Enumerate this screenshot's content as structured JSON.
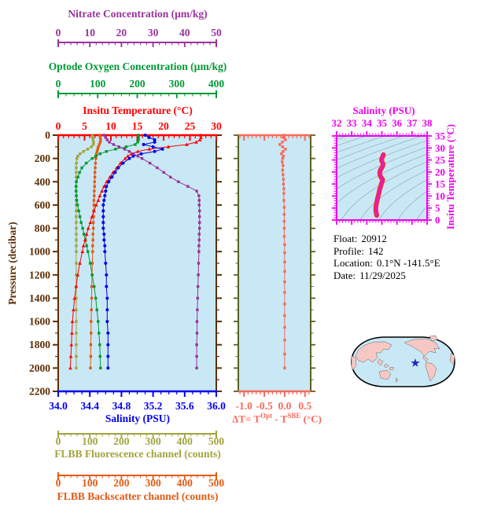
{
  "colors": {
    "nitrate": "#993399",
    "oxygen": "#009933",
    "temperature": "#FF0000",
    "salinity": "#0000EE",
    "pressure": "#5C2E04",
    "delta": "#F96A5A",
    "delta_frame": "#5A6022",
    "fluorescence": "#A3A33C",
    "backscatter": "#E35A12",
    "ts": "#EE00EE",
    "ts_curve": "#EE18B0",
    "ts_curve_edge": "#E8302A",
    "plot_bg": "#C9E8F5",
    "contour": "#9AA8B2",
    "land": "#F6C8C4",
    "map_outline": "#000000",
    "star": "#2222CC",
    "info_text": "#000000"
  },
  "labels": {
    "pressure_axis": "Pressure (decibar)",
    "salinity_axis": "Salinity (PSU)",
    "delta_prefix": "ΔT= T",
    "delta_sup1": "Opt",
    "delta_mid": " - T",
    "delta_sup2": "SBE",
    "delta_suffix": " (°C)",
    "ts_title": "Salinity (PSU)",
    "ts_right_axis": "Insitu Temperature (°C)"
  },
  "float_info": {
    "lines": [
      {
        "label": "Float:",
        "value": "20912"
      },
      {
        "label": "Profile:",
        "value": "142"
      },
      {
        "label": "Location:",
        "value": "0.1°N  -141.5°E"
      },
      {
        "label": "Date:",
        "value": "11/29/2025"
      }
    ]
  },
  "chart_data": [
    {
      "id": "main_profile",
      "type": "line",
      "title": "Multi-parameter vertical profiles",
      "y_axis": {
        "label": "Pressure (decibar)",
        "min": 0,
        "max": 2200,
        "tick_step": 200,
        "minor_step": 100,
        "decimals": 0
      },
      "pressures": [
        0,
        20,
        40,
        60,
        80,
        100,
        120,
        140,
        160,
        180,
        200,
        240,
        280,
        320,
        360,
        400,
        440,
        480,
        520,
        560,
        600,
        650,
        700,
        750,
        800,
        850,
        900,
        950,
        1000,
        1100,
        1200,
        1300,
        1400,
        1500,
        1600,
        1700,
        1800,
        1900,
        2000
      ],
      "series": [
        {
          "name": "FLBB Fluorescence channel (counts)",
          "color": "fluorescence",
          "marker": "square",
          "axis": {
            "min": 0,
            "max": 500,
            "ticks": [
              0,
              100,
              200,
              300,
              400,
              500
            ],
            "minor_step": 20,
            "decimals": 0
          },
          "values": [
            108,
            109,
            110,
            112,
            111,
            105,
            93,
            80,
            69,
            62,
            59,
            57.5,
            57,
            57,
            57,
            57,
            57,
            57,
            57,
            57,
            57,
            57,
            57,
            57,
            57,
            57,
            57,
            57,
            57,
            57,
            57,
            57,
            57,
            57,
            57,
            57,
            57,
            57,
            57
          ]
        },
        {
          "name": "FLBB Backscatter channel (counts)",
          "color": "backscatter",
          "marker": "square",
          "axis": {
            "min": 0,
            "max": 500,
            "ticks": [
              0,
              100,
              200,
              300,
              400,
              500
            ],
            "minor_step": 20,
            "decimals": 0
          },
          "values": [
            132,
            133,
            134,
            133,
            130,
            127,
            125,
            123,
            121,
            120,
            119,
            118,
            117,
            116,
            116,
            115,
            115,
            114,
            114,
            113,
            113,
            112,
            112,
            111,
            111,
            110,
            110,
            109,
            109,
            108,
            107,
            106,
            106,
            105,
            104,
            104,
            103,
            103,
            102
          ]
        },
        {
          "name": "Optode Oxygen Concentration (µm/kg)",
          "color": "oxygen",
          "marker": "square",
          "axis": {
            "min": 0,
            "max": 400,
            "ticks": [
              0,
              100,
              200,
              300,
              400
            ],
            "minor_step": 20,
            "decimals": 0
          },
          "values": [
            202,
            203,
            203,
            201,
            195,
            172,
            145,
            122,
            106,
            95,
            86,
            71,
            60,
            54,
            50,
            46,
            45,
            45,
            46,
            47,
            49,
            52,
            55,
            58,
            62,
            65,
            69,
            72,
            75,
            81,
            86,
            91,
            95,
            98,
            101,
            103,
            105,
            106,
            107
          ]
        },
        {
          "name": "Insitu Temperature (°C)",
          "color": "temperature",
          "marker": "triangle",
          "axis": {
            "min": 0,
            "max": 30,
            "ticks": [
              0,
              5,
              10,
              15,
              20,
              25,
              30
            ],
            "minor_step": 1,
            "decimals": 0
          },
          "values": [
            27.0,
            27.1,
            26.9,
            26.2,
            24.4,
            20.9,
            17.3,
            15.1,
            13.9,
            13.2,
            12.7,
            11.8,
            11.1,
            10.4,
            9.8,
            9.2,
            8.7,
            8.3,
            7.9,
            7.6,
            7.2,
            6.8,
            6.4,
            6.1,
            5.7,
            5.4,
            5.1,
            4.8,
            4.6,
            4.1,
            3.7,
            3.4,
            3.1,
            2.9,
            2.7,
            2.6,
            2.5,
            2.4,
            2.3
          ]
        },
        {
          "name": "Salinity (PSU)",
          "color": "salinity",
          "marker": "circle",
          "axis": {
            "min": 34.0,
            "max": 36.0,
            "ticks": [
              34.0,
              34.4,
              34.8,
              35.2,
              35.6,
              36.0
            ],
            "minor_step": 0.1,
            "decimals": 1
          },
          "values": [
            35.1,
            35.15,
            35.22,
            35.22,
            35.08,
            35.2,
            35.32,
            35.22,
            35.05,
            34.95,
            34.9,
            34.82,
            34.76,
            34.72,
            34.68,
            34.64,
            34.61,
            34.6,
            34.59,
            34.58,
            34.57,
            34.57,
            34.57,
            34.57,
            34.57,
            34.58,
            34.58,
            34.59,
            34.59,
            34.6,
            34.61,
            34.61,
            34.62,
            34.62,
            34.62,
            34.63,
            34.63,
            34.63,
            34.63
          ]
        },
        {
          "name": "Nitrate Concentration (µm/kg)",
          "color": "nitrate",
          "marker": "square",
          "axis": {
            "min": 0,
            "max": 50,
            "ticks": [
              0,
              10,
              20,
              30,
              40,
              50
            ],
            "minor_step": 2,
            "decimals": 0
          },
          "values": [
            14.5,
            15.0,
            15.5,
            16.2,
            17.5,
            19.2,
            21.0,
            22.5,
            23.8,
            25.2,
            26.5,
            29.0,
            31.3,
            33.4,
            35.5,
            38.0,
            41.0,
            43.8,
            44.5,
            44.6,
            44.6,
            44.7,
            44.7,
            44.7,
            44.7,
            44.6,
            44.6,
            44.5,
            44.5,
            44.4,
            44.3,
            44.2,
            44.1,
            44.0,
            43.9,
            43.9,
            43.8,
            43.8,
            43.8
          ]
        }
      ]
    },
    {
      "id": "delta_t",
      "type": "line",
      "title": "Optode minus SBE temperature difference",
      "x_axis": {
        "min": -1.14,
        "max": 0.64,
        "ticks": [
          -1.0,
          -0.5,
          0.0,
          0.5
        ],
        "minor_step": 0.1,
        "decimals": 1
      },
      "y_axis": {
        "min": 0,
        "max": 2200,
        "tick_step": 200,
        "minor_step": 100
      },
      "points": [
        [
          0,
          -0.02
        ],
        [
          20,
          -0.04
        ],
        [
          40,
          0.02
        ],
        [
          60,
          -0.06
        ],
        [
          80,
          -0.12
        ],
        [
          100,
          -0.05
        ],
        [
          120,
          0.02
        ],
        [
          140,
          -0.04
        ],
        [
          160,
          -0.08
        ],
        [
          180,
          -0.03
        ],
        [
          200,
          -0.05
        ],
        [
          230,
          -0.06
        ],
        [
          260,
          -0.04
        ],
        [
          300,
          -0.05
        ],
        [
          340,
          -0.04
        ],
        [
          380,
          -0.03
        ],
        [
          420,
          -0.03
        ],
        [
          460,
          -0.02
        ],
        [
          500,
          -0.02
        ],
        [
          560,
          -0.02
        ],
        [
          620,
          -0.01
        ],
        [
          680,
          -0.01
        ],
        [
          740,
          -0.01
        ],
        [
          800,
          -0.01
        ],
        [
          870,
          -0.01
        ],
        [
          940,
          0.0
        ],
        [
          1010,
          0.0
        ],
        [
          1090,
          0.0
        ],
        [
          1170,
          0.0
        ],
        [
          1260,
          0.0
        ],
        [
          1350,
          0.0
        ],
        [
          1450,
          0.0
        ],
        [
          1550,
          0.0
        ],
        [
          1650,
          0.0
        ],
        [
          1760,
          0.0
        ],
        [
          1880,
          0.0
        ],
        [
          2000,
          0.0
        ]
      ]
    },
    {
      "id": "ts_diagram",
      "type": "line",
      "title": "Salinity (PSU)",
      "x_axis": {
        "min": 32,
        "max": 38,
        "ticks": [
          32,
          33,
          34,
          35,
          36,
          37,
          38
        ],
        "minor_step": 0.2,
        "decimals": 0
      },
      "y_axis": {
        "label": "Insitu Temperature (°C)",
        "min": 0,
        "max": 35,
        "ticks": [
          0,
          5,
          10,
          15,
          20,
          25,
          30,
          35
        ],
        "minor_step": 1,
        "decimals": 0
      },
      "contours": {
        "kind": "sigma-theta isopycnals",
        "from": 17,
        "to": 30,
        "step": 1
      },
      "points": [
        [
          34.66,
          1.9
        ],
        [
          34.64,
          2.5
        ],
        [
          34.62,
          3.2
        ],
        [
          34.6,
          4.0
        ],
        [
          34.6,
          4.8
        ],
        [
          34.61,
          5.6
        ],
        [
          34.63,
          6.4
        ],
        [
          34.65,
          7.2
        ],
        [
          34.68,
          8.0
        ],
        [
          34.71,
          8.8
        ],
        [
          34.74,
          9.6
        ],
        [
          34.77,
          10.4
        ],
        [
          34.8,
          11.2
        ],
        [
          34.83,
          12.0
        ],
        [
          34.86,
          12.8
        ],
        [
          34.9,
          13.6
        ],
        [
          34.93,
          14.3
        ],
        [
          34.97,
          15.0
        ],
        [
          35.0,
          15.6
        ],
        [
          35.03,
          16.2
        ],
        [
          35.05,
          16.8
        ],
        [
          34.99,
          17.4
        ],
        [
          34.92,
          18.0
        ],
        [
          34.88,
          18.7
        ],
        [
          34.86,
          19.4
        ],
        [
          34.87,
          20.1
        ],
        [
          34.9,
          20.8
        ],
        [
          34.96,
          21.4
        ],
        [
          35.02,
          22.0
        ],
        [
          35.06,
          22.6
        ],
        [
          35.08,
          23.2
        ],
        [
          35.05,
          23.8
        ],
        [
          35.0,
          24.4
        ],
        [
          34.98,
          25.0
        ],
        [
          35.0,
          25.6
        ],
        [
          35.04,
          26.2
        ],
        [
          35.08,
          26.8
        ],
        [
          35.1,
          27.2
        ]
      ]
    },
    {
      "id": "location_map",
      "type": "map",
      "projection": "pacific-centered world",
      "star_fraction": [
        0.604,
        0.52
      ]
    }
  ]
}
